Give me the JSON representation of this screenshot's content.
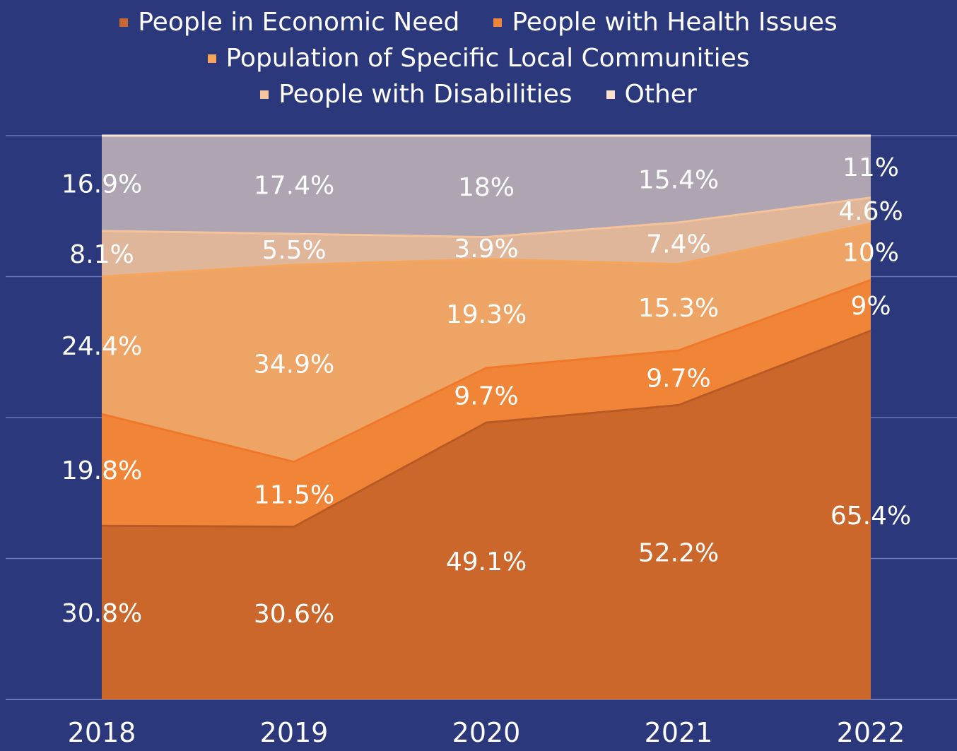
{
  "chart_data": {
    "type": "area",
    "stacked": true,
    "normalized": true,
    "categories": [
      "2018",
      "2019",
      "2020",
      "2021",
      "2022"
    ],
    "series": [
      {
        "name": "People in Economic Need",
        "color": "#cc672c",
        "values": [
          30.8,
          30.6,
          49.1,
          52.2,
          65.4
        ],
        "labels": [
          "30.8%",
          "30.6%",
          "49.1%",
          "52.2%",
          "65.4%"
        ]
      },
      {
        "name": "People with Health Issues",
        "color": "#f08538",
        "values": [
          19.8,
          11.5,
          9.7,
          9.7,
          9
        ],
        "labels": [
          "19.8%",
          "11.5%",
          "9.7%",
          "9.7%",
          "9%"
        ]
      },
      {
        "name": "Population of Specific Local Communities",
        "color": "#eea465",
        "values": [
          24.4,
          34.9,
          19.3,
          15.3,
          10
        ],
        "labels": [
          "24.4%",
          "34.9%",
          "19.3%",
          "15.3%",
          "10%"
        ]
      },
      {
        "name": "People with Disabilities",
        "color": "#dfb699",
        "values": [
          8.1,
          5.5,
          3.9,
          7.4,
          4.6
        ],
        "labels": [
          "8.1%",
          "5.5%",
          "3.9%",
          "7.4%",
          "4.6%"
        ]
      },
      {
        "name": "Other",
        "color": "#afa4b1",
        "values": [
          16.9,
          17.4,
          18,
          15.4,
          11
        ],
        "labels": [
          "16.9%",
          "17.4%",
          "18%",
          "15.4%",
          "11%"
        ]
      }
    ],
    "legend_swatch_colors": [
      "#cc672c",
      "#f08538",
      "#f5a45a",
      "#f6c49d",
      "#fbe2cc"
    ],
    "ylim": [
      0,
      100
    ],
    "grid": true,
    "legend_position": "top-center",
    "label_color": "#ffffff",
    "background": "#2b387c",
    "gridline_color": "#6b78b8"
  }
}
